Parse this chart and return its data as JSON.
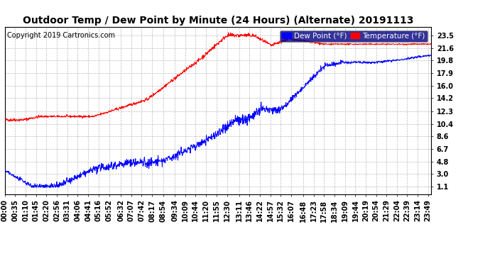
{
  "title": "Outdoor Temp / Dew Point by Minute (24 Hours) (Alternate) 20191113",
  "copyright": "Copyright 2019 Cartronics.com",
  "legend_labels": [
    "Dew Point (°F)",
    "Temperature (°F)"
  ],
  "yticks": [
    1.1,
    3.0,
    4.8,
    6.7,
    8.6,
    10.4,
    12.3,
    14.2,
    16.0,
    17.9,
    19.8,
    21.6,
    23.5
  ],
  "ylim": [
    0.0,
    24.8
  ],
  "xtick_labels": [
    "00:00",
    "00:35",
    "01:10",
    "01:45",
    "02:20",
    "02:56",
    "03:31",
    "04:06",
    "04:41",
    "05:16",
    "05:52",
    "06:32",
    "07:07",
    "07:42",
    "08:17",
    "08:54",
    "09:34",
    "10:09",
    "10:44",
    "11:20",
    "11:55",
    "12:30",
    "13:11",
    "13:46",
    "14:22",
    "14:57",
    "15:32",
    "16:07",
    "16:48",
    "17:23",
    "17:58",
    "18:34",
    "19:09",
    "19:44",
    "20:19",
    "20:54",
    "21:29",
    "22:04",
    "22:39",
    "23:14",
    "23:49"
  ],
  "bg_color": "#ffffff",
  "grid_color": "#aaaaaa",
  "title_fontsize": 10,
  "copyright_fontsize": 7,
  "tick_fontsize": 7,
  "legend_fontsize": 7.5
}
